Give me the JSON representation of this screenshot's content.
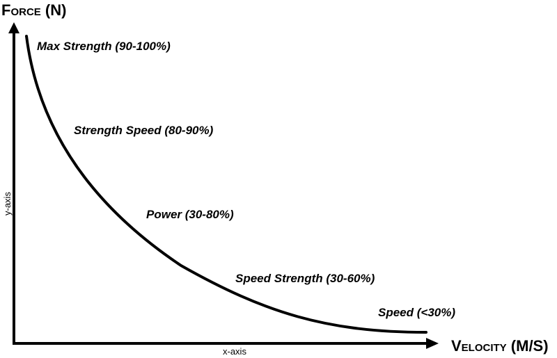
{
  "y_axis": {
    "title": "Force (N)",
    "sublabel": "y-axis"
  },
  "x_axis": {
    "title": "Velocity (M/S)",
    "sublabel": "x-axis"
  },
  "zones": [
    {
      "label": "Max Strength (90-100%)"
    },
    {
      "label": "Strength Speed (80-90%)"
    },
    {
      "label": "Power (30-80%)"
    },
    {
      "label": "Speed Strength (30-60%)"
    },
    {
      "label": "Speed (<30%)"
    }
  ],
  "colors": {
    "line": "#000000",
    "background": "#ffffff"
  }
}
